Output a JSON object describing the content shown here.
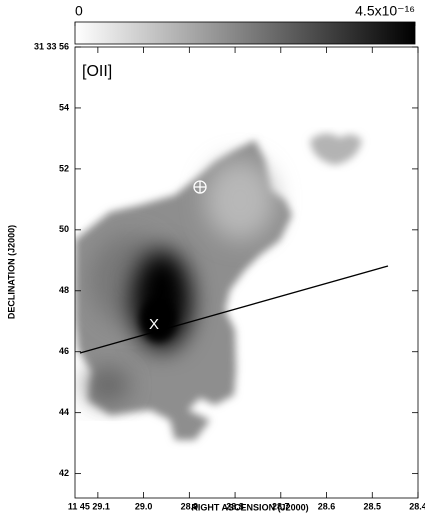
{
  "chart_data": {
    "type": "image",
    "label": "[OII]",
    "annotation": "X",
    "xlabel": "RIGHT ASCENSION (J2000)",
    "ylabel": "DECLINATION (J2000)",
    "xlim": [
      29.15,
      28.4
    ],
    "ylim": [
      41.2,
      56
    ],
    "xticks": [
      {
        "value": 29.1,
        "label": "11 45 29.1"
      },
      {
        "value": 29,
        "label": "29.0"
      },
      28.9,
      28.8,
      28.7,
      28.6,
      28.5,
      28.4
    ],
    "yticks": [
      {
        "value": 56,
        "label": "31 33 56"
      },
      54,
      52,
      50,
      48,
      46,
      44,
      42
    ],
    "colorbar": {
      "lim": [
        0,
        4.5e-16
      ],
      "ticks": [
        0,
        {
          "value": 4.5e-16,
          "label": "4.5x10⁻¹⁶"
        }
      ]
    }
  }
}
